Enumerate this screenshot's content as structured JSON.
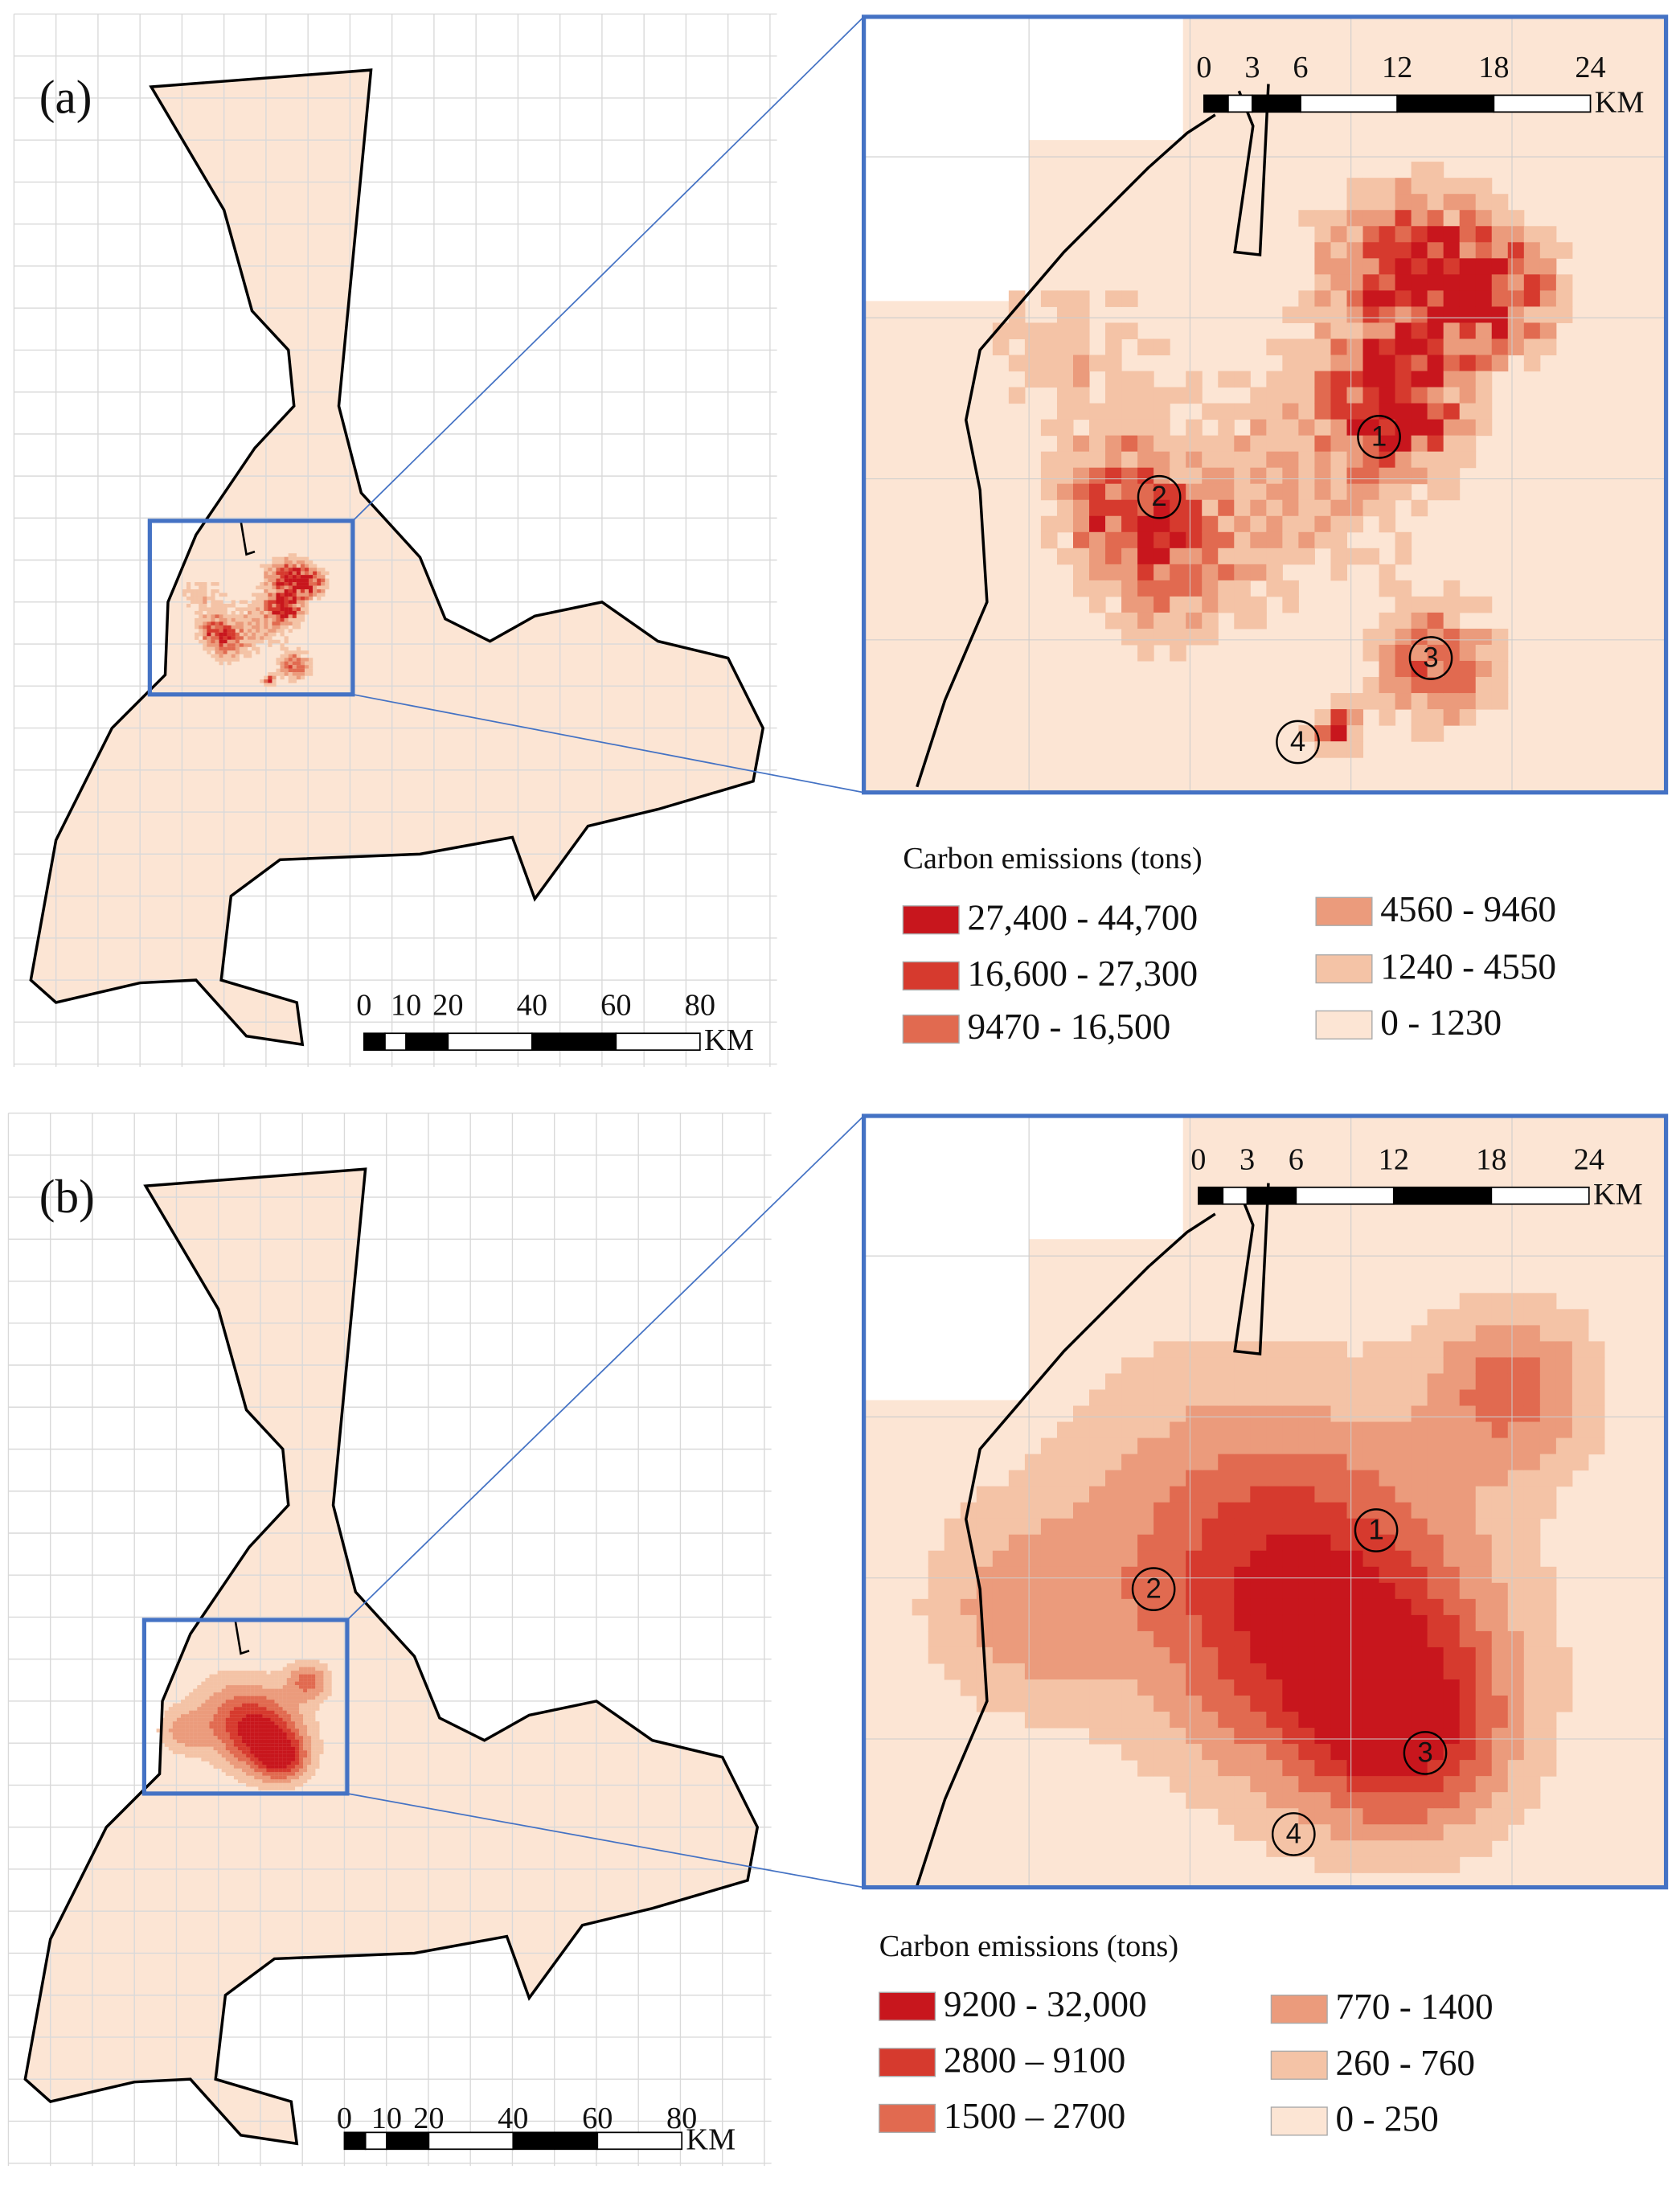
{
  "panels": [
    {
      "label": "(a)",
      "overview_scale": {
        "ticks": [
          "0",
          "10",
          "20",
          "40",
          "60",
          "80"
        ],
        "unit": "KM"
      },
      "inset_scale": {
        "ticks": [
          "0",
          "3",
          "6",
          "12",
          "18",
          "24"
        ],
        "unit": "KM"
      },
      "markers": [
        "1",
        "2",
        "3",
        "4"
      ],
      "legend": {
        "title": "Carbon emissions (tons)",
        "items": [
          {
            "label": "27,400 - 44,700",
            "color": "#c8161d"
          },
          {
            "label": "16,600 - 27,300",
            "color": "#d63a2e"
          },
          {
            "label": "9470 - 16,500",
            "color": "#e16a50"
          },
          {
            "label": "4560 - 9460",
            "color": "#eb9b7c"
          },
          {
            "label": "1240  - 4550",
            "color": "#f4c3a6"
          },
          {
            "label": "0 - 1230",
            "color": "#fce5d4"
          }
        ]
      }
    },
    {
      "label": "(b)",
      "overview_scale": {
        "ticks": [
          "0",
          "10",
          "20",
          "40",
          "60",
          "80"
        ],
        "unit": "KM"
      },
      "inset_scale": {
        "ticks": [
          "0",
          "3",
          "6",
          "12",
          "18",
          "24"
        ],
        "unit": "KM"
      },
      "markers": [
        "1",
        "2",
        "3",
        "4"
      ],
      "legend": {
        "title": "Carbon emissions (tons)",
        "items": [
          {
            "label": "9200 - 32,000",
            "color": "#c8161d"
          },
          {
            "label": "2800 – 9100",
            "color": "#d63a2e"
          },
          {
            "label": "1500 – 2700",
            "color": "#e16a50"
          },
          {
            "label": "770 - 1400",
            "color": "#eb9b7c"
          },
          {
            "label": "260 - 760",
            "color": "#f4c3a6"
          },
          {
            "label": "0 - 250",
            "color": "#fce5d4"
          }
        ]
      }
    }
  ]
}
